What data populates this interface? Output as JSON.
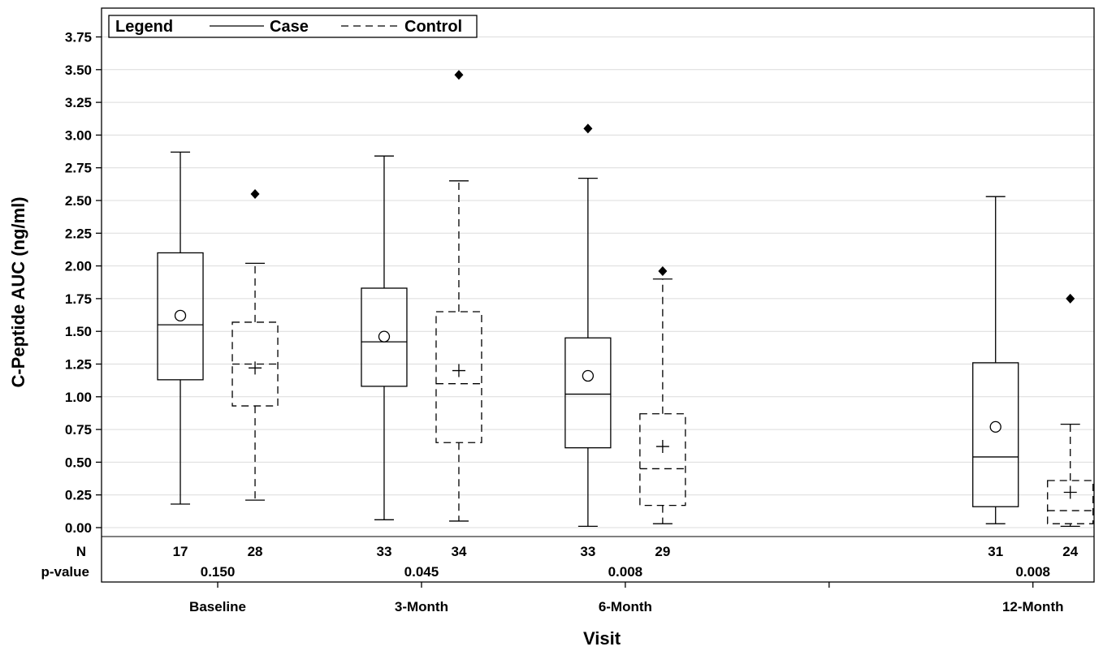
{
  "chart_data": {
    "type": "box",
    "title": "",
    "xlabel": "Visit",
    "ylabel": "C-Peptide AUC (ng/ml)",
    "ylim": [
      0,
      3.95
    ],
    "yticks": [
      0.0,
      0.25,
      0.5,
      0.75,
      1.0,
      1.25,
      1.5,
      1.75,
      2.0,
      2.25,
      2.5,
      2.75,
      3.0,
      3.25,
      3.5,
      3.75
    ],
    "ytick_labels": [
      "0.00",
      "0.25",
      "0.50",
      "0.75",
      "1.00",
      "1.25",
      "1.50",
      "1.75",
      "2.00",
      "2.25",
      "2.50",
      "2.75",
      "3.00",
      "3.25",
      "3.50",
      "3.75"
    ],
    "grid": true,
    "x_positions": [
      1,
      2,
      3,
      4,
      5
    ],
    "x_ticks": [
      {
        "x": 1,
        "label": "Baseline"
      },
      {
        "x": 2,
        "label": "3-Month"
      },
      {
        "x": 3,
        "label": "6-Month"
      },
      {
        "x": 4,
        "label": ""
      },
      {
        "x": 5,
        "label": "12-Month"
      }
    ],
    "legend": {
      "title": "Legend",
      "placement": "top-left",
      "entries": [
        {
          "name": "Case",
          "style": "solid"
        },
        {
          "name": "Control",
          "style": "dashed"
        }
      ]
    },
    "series": [
      {
        "name": "Case",
        "style": "solid",
        "mean_marker": "circle",
        "boxes": [
          {
            "visit": "Baseline",
            "x": 1,
            "whisker_low": 0.18,
            "q1": 1.13,
            "median": 1.55,
            "q3": 2.1,
            "whisker_high": 2.87,
            "mean": 1.62,
            "outliers": [],
            "n": "17"
          },
          {
            "visit": "3-Month",
            "x": 2,
            "whisker_low": 0.06,
            "q1": 1.08,
            "median": 1.42,
            "q3": 1.83,
            "whisker_high": 2.84,
            "mean": 1.46,
            "outliers": [],
            "n": "33"
          },
          {
            "visit": "6-Month",
            "x": 3,
            "whisker_low": 0.01,
            "q1": 0.61,
            "median": 1.02,
            "q3": 1.45,
            "whisker_high": 2.67,
            "mean": 1.16,
            "outliers": [
              3.05
            ],
            "n": "33"
          },
          {
            "visit": "12-Month",
            "x": 5,
            "whisker_low": 0.03,
            "q1": 0.16,
            "median": 0.54,
            "q3": 1.26,
            "whisker_high": 2.53,
            "mean": 0.77,
            "outliers": [],
            "n": "31"
          }
        ]
      },
      {
        "name": "Control",
        "style": "dashed",
        "mean_marker": "plus",
        "boxes": [
          {
            "visit": "Baseline",
            "x": 1,
            "whisker_low": 0.21,
            "q1": 0.93,
            "median": 1.25,
            "q3": 1.57,
            "whisker_high": 2.02,
            "mean": 1.22,
            "outliers": [
              2.55
            ],
            "n": "28"
          },
          {
            "visit": "3-Month",
            "x": 2,
            "whisker_low": 0.05,
            "q1": 0.65,
            "median": 1.1,
            "q3": 1.65,
            "whisker_high": 2.65,
            "mean": 1.2,
            "outliers": [
              3.46
            ],
            "n": "34"
          },
          {
            "visit": "6-Month",
            "x": 3,
            "whisker_low": 0.03,
            "q1": 0.17,
            "median": 0.45,
            "q3": 0.87,
            "whisker_high": 1.9,
            "mean": 0.62,
            "outliers": [
              1.96
            ],
            "n": "29"
          },
          {
            "visit": "12-Month",
            "x": 5,
            "whisker_low": 0.01,
            "q1": 0.03,
            "median": 0.13,
            "q3": 0.36,
            "whisker_high": 0.79,
            "mean": 0.27,
            "outliers": [
              1.75
            ],
            "n": "24"
          }
        ]
      }
    ],
    "stats_rows": {
      "n_label": "N",
      "p_label": "p-value",
      "p_values": [
        {
          "x": 1,
          "value": "0.150"
        },
        {
          "x": 2,
          "value": "0.045"
        },
        {
          "x": 3,
          "value": "0.008"
        },
        {
          "x": 5,
          "value": "0.008"
        }
      ]
    }
  }
}
